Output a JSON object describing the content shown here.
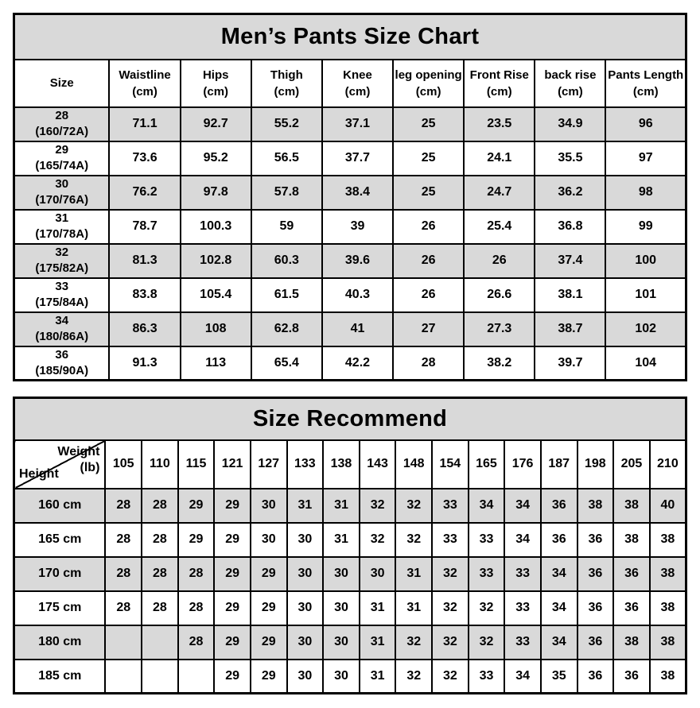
{
  "size_chart": {
    "title": "Men’s Pants Size Chart",
    "columns": [
      {
        "name": "Size",
        "unit": ""
      },
      {
        "name": "Waistline",
        "unit": "(cm)"
      },
      {
        "name": "Hips",
        "unit": "(cm)"
      },
      {
        "name": "Thigh",
        "unit": "(cm)"
      },
      {
        "name": "Knee",
        "unit": "(cm)"
      },
      {
        "name": "leg opening",
        "unit": "(cm)"
      },
      {
        "name": "Front Rise",
        "unit": "(cm)"
      },
      {
        "name": "back rise",
        "unit": "(cm)"
      },
      {
        "name": "Pants Length",
        "unit": "(cm)"
      }
    ],
    "rows": [
      {
        "size": "28",
        "code": "(160/72A)",
        "values": [
          "71.1",
          "92.7",
          "55.2",
          "37.1",
          "25",
          "23.5",
          "34.9",
          "96"
        ]
      },
      {
        "size": "29",
        "code": "(165/74A)",
        "values": [
          "73.6",
          "95.2",
          "56.5",
          "37.7",
          "25",
          "24.1",
          "35.5",
          "97"
        ]
      },
      {
        "size": "30",
        "code": "(170/76A)",
        "values": [
          "76.2",
          "97.8",
          "57.8",
          "38.4",
          "25",
          "24.7",
          "36.2",
          "98"
        ]
      },
      {
        "size": "31",
        "code": "(170/78A)",
        "values": [
          "78.7",
          "100.3",
          "59",
          "39",
          "26",
          "25.4",
          "36.8",
          "99"
        ]
      },
      {
        "size": "32",
        "code": "(175/82A)",
        "values": [
          "81.3",
          "102.8",
          "60.3",
          "39.6",
          "26",
          "26",
          "37.4",
          "100"
        ]
      },
      {
        "size": "33",
        "code": "(175/84A)",
        "values": [
          "83.8",
          "105.4",
          "61.5",
          "40.3",
          "26",
          "26.6",
          "38.1",
          "101"
        ]
      },
      {
        "size": "34",
        "code": "(180/86A)",
        "values": [
          "86.3",
          "108",
          "62.8",
          "41",
          "27",
          "27.3",
          "38.7",
          "102"
        ]
      },
      {
        "size": "36",
        "code": "(185/90A)",
        "values": [
          "91.3",
          "113",
          "65.4",
          "42.2",
          "28",
          "38.2",
          "39.7",
          "104"
        ]
      }
    ],
    "shade_color": "#d9d9d9"
  },
  "size_recommend": {
    "title": "Size Recommend",
    "corner": {
      "weight_label": "Weight",
      "weight_unit": "(lb)",
      "height_label": "Height"
    },
    "weights": [
      "105",
      "110",
      "115",
      "121",
      "127",
      "133",
      "138",
      "143",
      "148",
      "154",
      "165",
      "176",
      "187",
      "198",
      "205",
      "210"
    ],
    "rows": [
      {
        "height": "160 cm",
        "values": [
          "28",
          "28",
          "29",
          "29",
          "30",
          "31",
          "31",
          "32",
          "32",
          "33",
          "34",
          "34",
          "36",
          "38",
          "38",
          "40"
        ]
      },
      {
        "height": "165 cm",
        "values": [
          "28",
          "28",
          "29",
          "29",
          "30",
          "30",
          "31",
          "32",
          "32",
          "33",
          "33",
          "34",
          "36",
          "36",
          "38",
          "38"
        ]
      },
      {
        "height": "170 cm",
        "values": [
          "28",
          "28",
          "28",
          "29",
          "29",
          "30",
          "30",
          "30",
          "31",
          "32",
          "33",
          "33",
          "34",
          "36",
          "36",
          "38"
        ]
      },
      {
        "height": "175 cm",
        "values": [
          "28",
          "28",
          "28",
          "29",
          "29",
          "30",
          "30",
          "31",
          "31",
          "32",
          "32",
          "33",
          "34",
          "36",
          "36",
          "38"
        ]
      },
      {
        "height": "180 cm",
        "values": [
          "",
          "",
          "28",
          "29",
          "29",
          "30",
          "30",
          "31",
          "32",
          "32",
          "32",
          "33",
          "34",
          "36",
          "38",
          "38"
        ]
      },
      {
        "height": "185 cm",
        "values": [
          "",
          "",
          "",
          "29",
          "29",
          "30",
          "30",
          "31",
          "32",
          "32",
          "33",
          "34",
          "35",
          "36",
          "36",
          "38"
        ]
      }
    ],
    "shade_color": "#d9d9d9"
  }
}
